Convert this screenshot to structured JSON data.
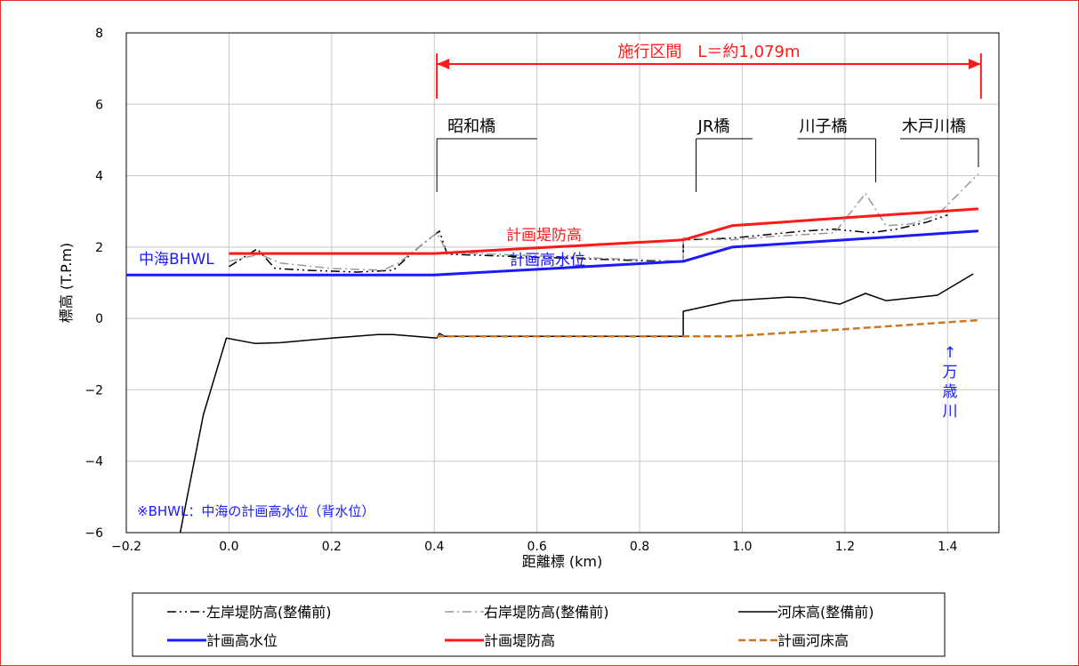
{
  "chart_data": {
    "type": "line",
    "xlabel": "距離標 (km)",
    "ylabel": "標高 (T.P.m)",
    "xlim": [
      -0.2,
      1.5
    ],
    "ylim": [
      -6,
      8
    ],
    "xticks": [
      -0.2,
      0.0,
      0.2,
      0.4,
      0.6,
      0.8,
      1.0,
      1.2,
      1.4
    ],
    "xtick_labels": [
      "−0.2",
      "0.0",
      "0.2",
      "0.4",
      "0.6",
      "0.8",
      "1.0",
      "1.2",
      "1.4"
    ],
    "yticks": [
      -6,
      -4,
      -2,
      0,
      2,
      4,
      6,
      8
    ],
    "ytick_labels": [
      "−6",
      "−4",
      "−2",
      "0",
      "2",
      "4",
      "6",
      "8"
    ],
    "grid": true,
    "legend_position": "bottom",
    "series": [
      {
        "name": "左岸堤防高(整備前)",
        "style": "dashdotdot",
        "color": "#000000",
        "x": [
          0.0,
          0.055,
          0.09,
          0.15,
          0.25,
          0.32,
          0.37,
          0.41,
          0.425,
          0.885,
          0.885,
          0.98,
          1.05,
          1.12,
          1.18,
          1.25,
          1.3,
          1.36,
          1.4
        ],
        "y": [
          1.45,
          1.95,
          1.4,
          1.35,
          1.3,
          1.35,
          2.0,
          2.45,
          1.8,
          1.58,
          2.2,
          2.25,
          2.35,
          2.45,
          2.5,
          2.4,
          2.5,
          2.7,
          2.9
        ]
      },
      {
        "name": "右岸堤防高(整備前)",
        "style": "dashdot",
        "color": "#999999",
        "x": [
          0.0,
          0.06,
          0.1,
          0.2,
          0.3,
          0.33,
          0.37,
          0.405,
          0.425,
          0.885,
          0.885,
          0.98,
          1.06,
          1.12,
          1.18,
          1.24,
          1.28,
          1.33,
          1.38,
          1.46
        ],
        "y": [
          1.6,
          1.8,
          1.55,
          1.4,
          1.35,
          1.55,
          2.0,
          2.4,
          1.85,
          1.6,
          2.25,
          2.2,
          2.3,
          2.35,
          2.4,
          3.5,
          2.6,
          2.65,
          2.9,
          4.05
        ]
      },
      {
        "name": "河床高(整備前)",
        "style": "solid",
        "color": "#000000",
        "x": [
          -0.095,
          -0.05,
          -0.005,
          0.05,
          0.1,
          0.2,
          0.29,
          0.32,
          0.405,
          0.41,
          0.42,
          0.885,
          0.885,
          0.98,
          1.09,
          1.12,
          1.19,
          1.24,
          1.28,
          1.38,
          1.45
        ],
        "y": [
          -6.0,
          -2.7,
          -0.55,
          -0.7,
          -0.68,
          -0.55,
          -0.45,
          -0.45,
          -0.55,
          -0.42,
          -0.5,
          -0.5,
          0.2,
          0.5,
          0.6,
          0.58,
          0.4,
          0.7,
          0.5,
          0.65,
          1.25
        ]
      },
      {
        "name": "計画高水位",
        "style": "solid",
        "color": "#1a1aff",
        "x": [
          -0.2,
          0.4,
          0.885,
          0.98,
          1.2,
          1.46
        ],
        "y": [
          1.22,
          1.22,
          1.6,
          2.0,
          2.2,
          2.45
        ]
      },
      {
        "name": "計画堤防高",
        "style": "solid",
        "color": "#ff1a1a",
        "x": [
          0.0,
          0.4,
          0.885,
          0.98,
          1.2,
          1.46
        ],
        "y": [
          1.82,
          1.82,
          2.2,
          2.6,
          2.82,
          3.07
        ]
      },
      {
        "name": "計画河床高",
        "style": "dashed",
        "color": "#cc7722",
        "x": [
          0.405,
          0.98,
          1.2,
          1.46
        ],
        "y": [
          -0.5,
          -0.5,
          -0.3,
          -0.05
        ]
      }
    ],
    "legend": [
      {
        "name": "左岸堤防高(整備前)"
      },
      {
        "name": "右岸堤防高(整備前)"
      },
      {
        "name": "河床高(整備前)"
      },
      {
        "name": "計画高水位"
      },
      {
        "name": "計画堤防高"
      },
      {
        "name": "計画河床高"
      }
    ],
    "annotations": {
      "section_label": "施行区間　L＝約1,079m",
      "section_x": [
        0.405,
        1.465
      ],
      "section_color": "#ff1a1a",
      "bridges": [
        {
          "name": "昭和橋",
          "x": 0.405,
          "bar_end": 0.6
        },
        {
          "name": "JR橋",
          "x": 0.91,
          "bar_end": 1.02
        },
        {
          "name": "川子橋",
          "x": 1.26,
          "bar_end": 1.26
        },
        {
          "name": "木戸川橋",
          "x": 1.46,
          "bar_end": 1.46
        }
      ],
      "nakaumi_bhwl": "中海BHWL",
      "keikaku_teibou_label": "計画堤防高",
      "keikaku_kousui_label": "計画高水位",
      "manzai_arrow": "↑",
      "manzai_chars": [
        "万",
        "歳",
        "川"
      ],
      "bhwl_note": "※BHWL：中海の計画高水位（背水位）",
      "blue_color": "#1a1aff"
    }
  }
}
